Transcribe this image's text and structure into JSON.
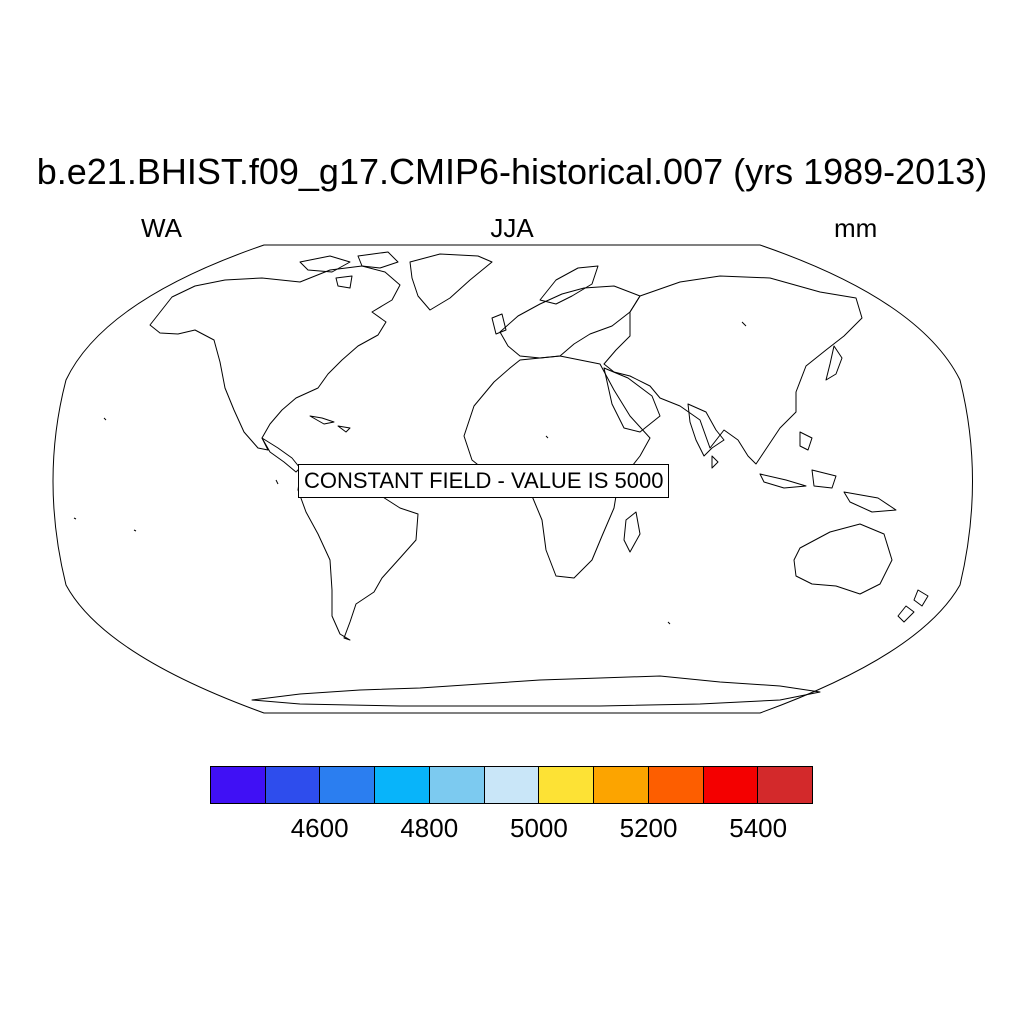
{
  "title": "b.e21.BHIST.f09_g17.CMIP6-historical.007 (yrs 1989-2013)",
  "subtitle_left": "WA",
  "subtitle_center": "JJA",
  "subtitle_right": "mm",
  "map": {
    "projection": "Robinson",
    "constant_field_label": "CONSTANT FIELD - VALUE IS 5000"
  },
  "colorbar": {
    "colors": [
      "#4010f5",
      "#2e4ded",
      "#2b7ef0",
      "#08b4fa",
      "#7ccaf0",
      "#c9e6f8",
      "#fde235",
      "#fca400",
      "#fd5e00",
      "#f40000",
      "#d3292b"
    ],
    "labels": [
      "4600",
      "4800",
      "5000",
      "5200",
      "5400"
    ]
  }
}
